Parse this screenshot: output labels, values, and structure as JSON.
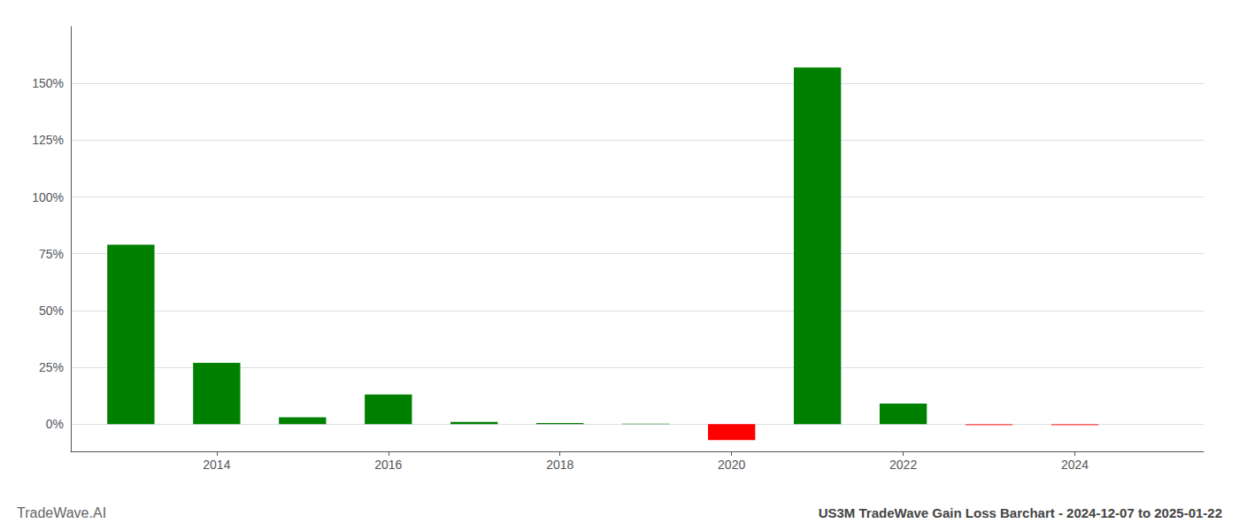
{
  "chart_data": {
    "type": "bar",
    "title": "US3M TradeWave Gain Loss Barchart - 2024-12-07 to 2025-01-22",
    "annotations": [
      "TradeWave.AI"
    ],
    "x": [
      2013,
      2014,
      2015,
      2016,
      2017,
      2018,
      2019,
      2020,
      2021,
      2022,
      2023,
      2024
    ],
    "values": [
      0.79,
      0.27,
      0.03,
      0.13,
      0.01,
      0.005,
      0.002,
      -0.07,
      1.57,
      0.09,
      -0.005,
      -0.005
    ],
    "colors": [
      "#008000",
      "#008000",
      "#008000",
      "#008000",
      "#008000",
      "#008000",
      "#008000",
      "#ff0000",
      "#008000",
      "#008000",
      "#ff4444",
      "#ff4444"
    ],
    "xlim": [
      2012.3,
      2025.5
    ],
    "xticks": [
      2014,
      2016,
      2018,
      2020,
      2022,
      2024
    ],
    "ylim": [
      -0.12,
      1.75
    ],
    "yticks": [
      {
        "value": 0.0,
        "label": "0%"
      },
      {
        "value": 0.25,
        "label": "25%"
      },
      {
        "value": 0.5,
        "label": "50%"
      },
      {
        "value": 0.75,
        "label": "75%"
      },
      {
        "value": 1.0,
        "label": "100%"
      },
      {
        "value": 1.25,
        "label": "125%"
      },
      {
        "value": 1.5,
        "label": "150%"
      }
    ],
    "grid": true
  }
}
